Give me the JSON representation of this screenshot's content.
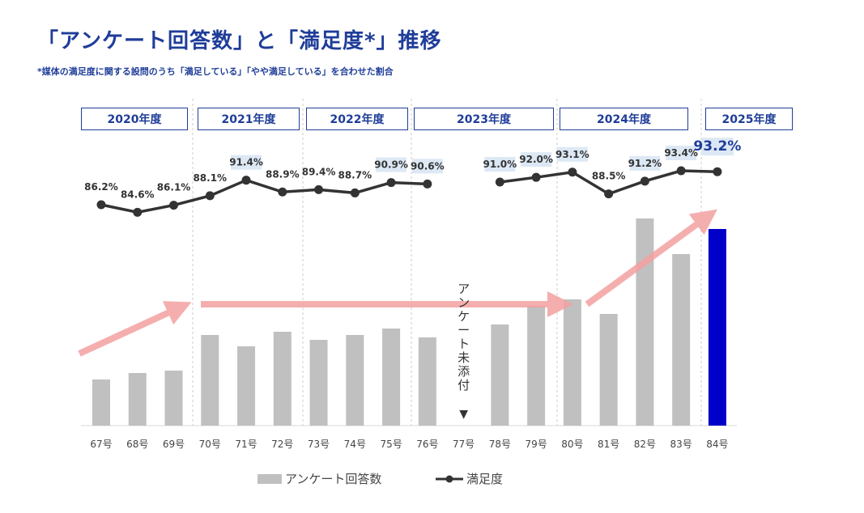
{
  "title": "「アンケート回答数」と「満足度*」推移",
  "subtitle": "*媒体の満足度に関する設問のうち「満足している」「やや満足している」を合わせた割合",
  "chart_data": {
    "type": "bar+line",
    "categories": [
      "67号",
      "68号",
      "69号",
      "70号",
      "71号",
      "72号",
      "73号",
      "74号",
      "75号",
      "76号",
      "77号",
      "78号",
      "79号",
      "80号",
      "81号",
      "82号",
      "83号",
      "84号"
    ],
    "year_groups": [
      {
        "label": "2020年度",
        "issues": [
          "67号",
          "68号",
          "69号"
        ]
      },
      {
        "label": "2021年度",
        "issues": [
          "70号",
          "71号",
          "72号"
        ]
      },
      {
        "label": "2022年度",
        "issues": [
          "73号",
          "74号",
          "75号"
        ]
      },
      {
        "label": "2023年度",
        "issues": [
          "76号",
          "77号",
          "78号",
          "79号"
        ]
      },
      {
        "label": "2024年度",
        "issues": [
          "80号",
          "81号",
          "82号",
          "83号"
        ]
      },
      {
        "label": "2025年度",
        "issues": [
          "84号"
        ]
      }
    ],
    "series": [
      {
        "name": "アンケート回答数",
        "type": "bar",
        "unit": "relative (no axis shown)",
        "values": [
          57,
          65,
          68,
          112,
          98,
          116,
          106,
          112,
          120,
          109,
          null,
          125,
          148,
          156,
          138,
          256,
          212,
          243
        ],
        "color": "#c0c0c0",
        "highlight_color": "#0000c8"
      },
      {
        "name": "満足度",
        "type": "line",
        "unit": "%",
        "values": [
          86.2,
          84.6,
          86.1,
          88.1,
          91.4,
          88.9,
          89.4,
          88.7,
          90.9,
          90.6,
          null,
          91.0,
          92.0,
          93.1,
          88.5,
          91.2,
          93.4,
          93.2
        ],
        "labels": [
          "86.2%",
          "84.6%",
          "86.1%",
          "88.1%",
          "91.4%",
          "88.9%",
          "89.4%",
          "88.7%",
          "90.9%",
          "90.6%",
          "",
          "91.0%",
          "92.0%",
          "93.1%",
          "88.5%",
          "91.2%",
          "93.4%",
          "93.2%"
        ],
        "highlighted": [
          false,
          false,
          false,
          false,
          true,
          false,
          false,
          false,
          true,
          true,
          false,
          true,
          true,
          true,
          false,
          true,
          true,
          true
        ],
        "color": "#333333"
      }
    ],
    "annotation": {
      "text": "アンケート未添付",
      "marker": "▼",
      "category": "77号"
    },
    "legend": {
      "position": "bottom",
      "items": [
        "アンケート回答数",
        "満足度"
      ]
    },
    "grid": false
  },
  "colors": {
    "title": "#1f3d99",
    "bar": "#c0c0c0",
    "bar_highlight": "#0000c8",
    "line": "#333333",
    "arrow": "#f4a0a0",
    "label_bg": "#dde8f5"
  }
}
